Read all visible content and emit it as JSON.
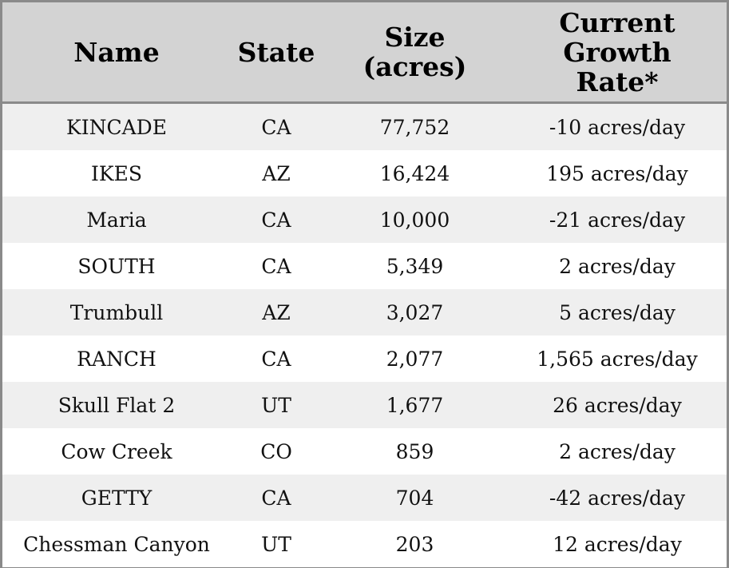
{
  "table": {
    "headers": {
      "name": "Name",
      "state": "State",
      "size_line1": "Size",
      "size_line2": "(acres)",
      "rate_line1": "Current",
      "rate_line2": "Growth",
      "rate_line3": "Rate*"
    },
    "rows": [
      {
        "name": "KINCADE",
        "state": "CA",
        "size": "77,752",
        "rate": "-10 acres/day"
      },
      {
        "name": "IKES",
        "state": "AZ",
        "size": "16,424",
        "rate": "195 acres/day"
      },
      {
        "name": "Maria",
        "state": "CA",
        "size": "10,000",
        "rate": "-21 acres/day"
      },
      {
        "name": "SOUTH",
        "state": "CA",
        "size": "5,349",
        "rate": "2 acres/day"
      },
      {
        "name": "Trumbull",
        "state": "AZ",
        "size": "3,027",
        "rate": "5 acres/day"
      },
      {
        "name": "RANCH",
        "state": "CA",
        "size": "2,077",
        "rate": "1,565 acres/day"
      },
      {
        "name": "Skull Flat 2",
        "state": "UT",
        "size": "1,677",
        "rate": "26 acres/day"
      },
      {
        "name": "Cow Creek",
        "state": "CO",
        "size": "859",
        "rate": "2 acres/day"
      },
      {
        "name": "GETTY",
        "state": "CA",
        "size": "704",
        "rate": "-42 acres/day"
      },
      {
        "name": "Chessman Canyon",
        "state": "UT",
        "size": "203",
        "rate": "12 acres/day"
      }
    ]
  },
  "colors": {
    "header_bg": "#d3d3d3",
    "stripe_bg": "#efefef",
    "border": "#8a8a8a"
  }
}
